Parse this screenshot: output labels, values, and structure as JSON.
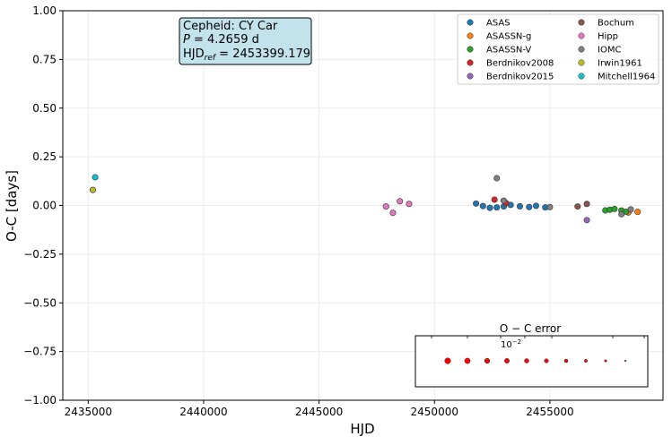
{
  "chart_data": {
    "type": "scatter",
    "xlabel": "HJD",
    "ylabel": "O-C [days]",
    "xlim": [
      2433900,
      2459900
    ],
    "ylim": [
      -1.0,
      1.0
    ],
    "x_ticks": [
      2435000,
      2440000,
      2445000,
      2450000,
      2455000
    ],
    "x_tick_labels": [
      "2435000",
      "2440000",
      "2445000",
      "2450000",
      "2455000"
    ],
    "y_ticks": [
      -1.0,
      -0.75,
      -0.5,
      -0.25,
      0.0,
      0.25,
      0.5,
      0.75,
      1.0
    ],
    "y_tick_labels": [
      "−1.00",
      "−0.75",
      "−0.50",
      "−0.25",
      "0.00",
      "0.25",
      "0.50",
      "0.75",
      "1.00"
    ],
    "grid": true,
    "legend_position": "top-right",
    "info_box": {
      "line1": "Cepheid: CY Car",
      "line2_prefix": "P",
      "line2_value": " = 4.2659 d",
      "line3_prefix": "HJD",
      "line3_sub": "ref",
      "line3_value": " = 2453399.179"
    },
    "series": [
      {
        "name": "ASAS",
        "color": "#1f77b4",
        "points": [
          [
            2451800,
            0.01
          ],
          [
            2452100,
            -0.003
          ],
          [
            2452400,
            -0.012
          ],
          [
            2452700,
            -0.01
          ],
          [
            2453000,
            -0.005
          ],
          [
            2453300,
            0.003
          ],
          [
            2453700,
            -0.004
          ],
          [
            2454100,
            -0.008
          ],
          [
            2454400,
            -0.002
          ],
          [
            2454800,
            -0.01
          ]
        ]
      },
      {
        "name": "ASASSN-g",
        "color": "#ff7f0e",
        "points": [
          [
            2458400,
            -0.036
          ],
          [
            2458800,
            -0.033
          ]
        ]
      },
      {
        "name": "ASASSN-V",
        "color": "#2ca02c",
        "points": [
          [
            2457400,
            -0.025
          ],
          [
            2457600,
            -0.022
          ],
          [
            2457800,
            -0.018
          ],
          [
            2458100,
            -0.026
          ],
          [
            2458300,
            -0.032
          ]
        ]
      },
      {
        "name": "Berdnikov2008",
        "color": "#d62728",
        "points": [
          [
            2452600,
            0.03
          ],
          [
            2453100,
            0.012
          ]
        ]
      },
      {
        "name": "Berdnikov2015",
        "color": "#9467bd",
        "points": [
          [
            2456600,
            -0.075
          ]
        ]
      },
      {
        "name": "Bochum",
        "color": "#8c564b",
        "points": [
          [
            2456200,
            -0.005
          ],
          [
            2456600,
            0.008
          ]
        ]
      },
      {
        "name": "Hipp",
        "color": "#e377c2",
        "points": [
          [
            2447900,
            -0.005
          ],
          [
            2448200,
            -0.038
          ],
          [
            2448500,
            0.022
          ],
          [
            2448900,
            0.008
          ]
        ]
      },
      {
        "name": "IOMC",
        "color": "#7f7f7f",
        "points": [
          [
            2452700,
            0.14
          ],
          [
            2453000,
            0.025
          ],
          [
            2455000,
            -0.008
          ],
          [
            2458100,
            -0.045
          ],
          [
            2458500,
            -0.02
          ]
        ]
      },
      {
        "name": "Irwin1961",
        "color": "#bcbd22",
        "points": [
          [
            2435200,
            0.08
          ]
        ]
      },
      {
        "name": "Mitchell1964",
        "color": "#17becf",
        "points": [
          [
            2435300,
            0.145
          ]
        ]
      }
    ],
    "error_legend": {
      "title": "O − C error",
      "scale_label": "10",
      "scale_exp": "−2",
      "color": "#ff0000"
    }
  }
}
